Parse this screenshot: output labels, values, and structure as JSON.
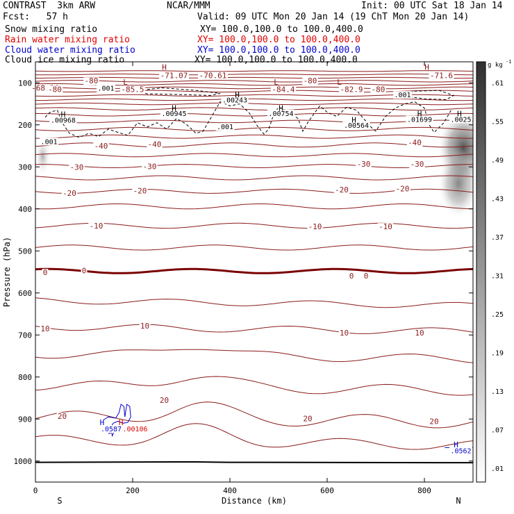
{
  "header": {
    "model": "CONTRAST  3km ARW",
    "org": "NCAR/MMM",
    "init": "Init: 00 UTC Sat 18 Jan 14",
    "fcst": "Fcst:   57 h",
    "valid": "Valid: 09 UTC Mon 20 Jan 14 (19 ChT Mon 20 Jan 14)",
    "fields": [
      {
        "name": "Snow mixing ratio",
        "xy": "XY= 100.0,100.0 to 100.0,400.0",
        "color": "#000000"
      },
      {
        "name": "Rain water mixing ratio",
        "xy": "XY= 100.0,100.0 to 100.0,400.0",
        "color": "#dd0000"
      },
      {
        "name": "Cloud water mixing ratio",
        "xy": "XY= 100.0,100.0 to 100.0,400.0",
        "color": "#0000cc"
      },
      {
        "name": "Cloud ice mixing ratio",
        "xy": "XY= 100.0,100.0 to 100.0,400.0",
        "color": "#000000"
      }
    ]
  },
  "colors": {
    "temperature": "#8b1a1a",
    "zero_isotherm": "#7a0000",
    "cloud_water": "#0000cc",
    "rain": "#dd0000",
    "ice": "#000000"
  },
  "chart_data": {
    "type": "contour-cross-section",
    "xlabel": "Distance (km)",
    "ylabel": "Pressure (hPa)",
    "xlim": [
      0,
      900
    ],
    "ylim": [
      1050,
      50
    ],
    "x_ticks": [
      0,
      200,
      400,
      600,
      800
    ],
    "y_ticks": [
      100,
      200,
      300,
      400,
      500,
      600,
      700,
      800,
      900,
      1000
    ],
    "x_end_labels": {
      "left": "S",
      "right": "N"
    },
    "colorbar": {
      "unit": "g kg",
      "unit_exp": "-1",
      "ticks": [
        ".01",
        ".07",
        ".13",
        ".19",
        ".25",
        ".31",
        ".37",
        ".43",
        ".49",
        ".55",
        ".61"
      ]
    },
    "temperature_labels": [
      {
        "text": "-68.36",
        "x": 20,
        "p": 112
      },
      {
        "text": "-71.07",
        "x": 285,
        "p": 82
      },
      {
        "text": "-70.61",
        "x": 365,
        "p": 82
      },
      {
        "text": "-71.6",
        "x": 835,
        "p": 82
      },
      {
        "text": "-80",
        "x": 115,
        "p": 95
      },
      {
        "text": "-80",
        "x": 40,
        "p": 115
      },
      {
        "text": "-85.5",
        "x": 200,
        "p": 115
      },
      {
        "text": "-84.4",
        "x": 510,
        "p": 115
      },
      {
        "text": "-80",
        "x": 565,
        "p": 95
      },
      {
        "text": "-82.9",
        "x": 650,
        "p": 115
      },
      {
        "text": "-80",
        "x": 705,
        "p": 115
      },
      {
        "text": "-40",
        "x": 135,
        "p": 250
      },
      {
        "text": "-40",
        "x": 245,
        "p": 246
      },
      {
        "text": "-40",
        "x": 780,
        "p": 242
      },
      {
        "text": "-30",
        "x": 85,
        "p": 300
      },
      {
        "text": "-30",
        "x": 235,
        "p": 299
      },
      {
        "text": "-30",
        "x": 675,
        "p": 293
      },
      {
        "text": "-30",
        "x": 785,
        "p": 293
      },
      {
        "text": "-20",
        "x": 70,
        "p": 362
      },
      {
        "text": "-20",
        "x": 215,
        "p": 357
      },
      {
        "text": "-20",
        "x": 630,
        "p": 354
      },
      {
        "text": "-20",
        "x": 755,
        "p": 352
      },
      {
        "text": "-10",
        "x": 125,
        "p": 440
      },
      {
        "text": "-10",
        "x": 575,
        "p": 442
      },
      {
        "text": "-10",
        "x": 720,
        "p": 442
      },
      {
        "text": "0",
        "x": 20,
        "p": 551
      },
      {
        "text": "0",
        "x": 100,
        "p": 547
      },
      {
        "text": "0",
        "x": 650,
        "p": 559
      },
      {
        "text": "0",
        "x": 680,
        "p": 559
      },
      {
        "text": "10",
        "x": 20,
        "p": 685
      },
      {
        "text": "10",
        "x": 225,
        "p": 678
      },
      {
        "text": "10",
        "x": 635,
        "p": 695
      },
      {
        "text": "10",
        "x": 790,
        "p": 695
      },
      {
        "text": "20",
        "x": 55,
        "p": 893
      },
      {
        "text": "20",
        "x": 265,
        "p": 855
      },
      {
        "text": "20",
        "x": 560,
        "p": 899
      },
      {
        "text": "20",
        "x": 820,
        "p": 905
      }
    ],
    "extrema_labels": [
      {
        "text": "H",
        "x": 265,
        "p": 62,
        "color": "#8b1a1a"
      },
      {
        "text": "H",
        "x": 805,
        "p": 62,
        "color": "#8b1a1a"
      },
      {
        "text": "L",
        "x": 185,
        "p": 98,
        "color": "#8b1a1a"
      },
      {
        "text": "L",
        "x": 495,
        "p": 98,
        "color": "#8b1a1a"
      },
      {
        "text": "L",
        "x": 625,
        "p": 98,
        "color": "#8b1a1a"
      },
      {
        "text": "H",
        "x": 415,
        "p": 128,
        "color": "#000000"
      },
      {
        "text": "H",
        "x": 57,
        "p": 175,
        "color": "#000000"
      },
      {
        "text": "H",
        "x": 285,
        "p": 160,
        "color": "#000000"
      },
      {
        "text": "H",
        "x": 505,
        "p": 160,
        "color": "#000000"
      },
      {
        "text": "H",
        "x": 655,
        "p": 188,
        "color": "#000000"
      },
      {
        "text": "H",
        "x": 790,
        "p": 173,
        "color": "#000000"
      },
      {
        "text": "H",
        "x": 872,
        "p": 173,
        "color": "#000000"
      },
      {
        "text": "H",
        "x": 137,
        "p": 908,
        "color": "#0000cc"
      },
      {
        "text": "H",
        "x": 176,
        "p": 908,
        "color": "#dd0000"
      },
      {
        "text": "H",
        "x": 865,
        "p": 961,
        "color": "#0000cc"
      }
    ],
    "snow_labels": [
      {
        "text": ".001",
        "x": 145,
        "p": 112
      },
      {
        "text": ".00243",
        "x": 410,
        "p": 140
      },
      {
        "text": ".001",
        "x": 755,
        "p": 128
      },
      {
        "text": ".00968",
        "x": 57,
        "p": 188
      },
      {
        "text": ".00945",
        "x": 285,
        "p": 172
      },
      {
        "text": ".00754",
        "x": 505,
        "p": 172
      },
      {
        "text": ".00564",
        "x": 660,
        "p": 200
      },
      {
        "text": ".01699",
        "x": 790,
        "p": 186
      },
      {
        "text": ".0025",
        "x": 875,
        "p": 186
      },
      {
        "text": ".001",
        "x": 390,
        "p": 204
      },
      {
        "text": ".001",
        "x": 28,
        "p": 239
      }
    ],
    "cloud_labels": [
      {
        "text": ".05871",
        "x": 160,
        "p": 923,
        "color": "#0000cc"
      },
      {
        "text": ".00106",
        "x": 205,
        "p": 923,
        "color": "#dd0000"
      },
      {
        "text": ".0562",
        "x": 875,
        "p": 975,
        "color": "#0000cc"
      }
    ]
  }
}
